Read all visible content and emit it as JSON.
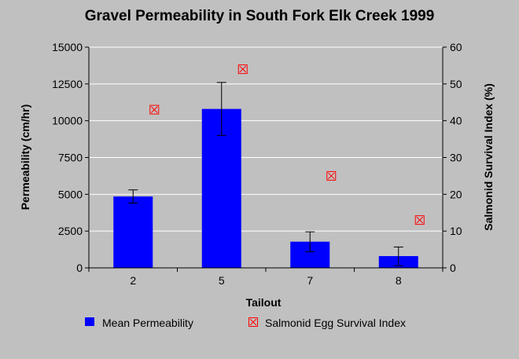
{
  "chart_data": {
    "type": "bar",
    "title": "Gravel Permeability in South Fork Elk Creek 1999",
    "xlabel": "Tailout",
    "ylabel": "Permeability (cm/hr)",
    "y2label": "Salmonid Survival Index (%)",
    "categories": [
      "2",
      "5",
      "7",
      "8"
    ],
    "ylim": [
      0,
      15000
    ],
    "yticks": [
      "0",
      "2500",
      "5000",
      "7500",
      "10000",
      "12500",
      "15000"
    ],
    "y2lim": [
      0,
      60
    ],
    "y2ticks": [
      "0",
      "10",
      "20",
      "30",
      "40",
      "50",
      "60"
    ],
    "grid": true,
    "legend_position": "bottom",
    "series": [
      {
        "name": "Mean Permeability",
        "type": "bar",
        "axis": "left",
        "color": "#0000ff",
        "values": [
          4850,
          10800,
          1780,
          800
        ],
        "error_low": [
          4400,
          9000,
          1100,
          150
        ],
        "error_high": [
          5300,
          12600,
          2450,
          1420
        ]
      },
      {
        "name": "Salmonid Egg Survival Index",
        "type": "scatter",
        "marker": "boxed-x",
        "axis": "right",
        "color": "#ff0000",
        "values": [
          43,
          54,
          25,
          13
        ]
      }
    ]
  }
}
